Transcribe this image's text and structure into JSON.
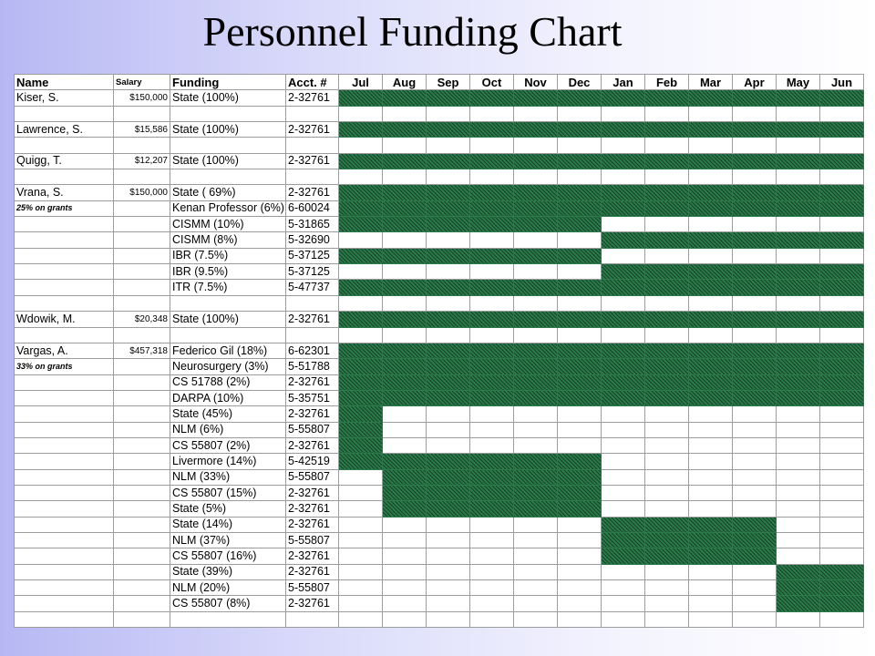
{
  "title": "Personnel Funding Chart",
  "chart_data": {
    "type": "table",
    "columns": [
      "Name",
      "Salary",
      "Funding",
      "Acct. #",
      "Jul",
      "Aug",
      "Sep",
      "Oct",
      "Nov",
      "Dec",
      "Jan",
      "Feb",
      "Mar",
      "Apr",
      "May",
      "Jun"
    ],
    "fill_color": "#2a7a4a",
    "rows": [
      {
        "name": "Kiser, S.",
        "salary": "$150,000",
        "funding": "State (100%)",
        "acct": "2-32761",
        "start": 0,
        "end": 12
      },
      {
        "name": "",
        "salary": "",
        "funding": "",
        "acct": ""
      },
      {
        "name": "Lawrence, S.",
        "salary": "$15,586",
        "funding": "State (100%)",
        "acct": "2-32761",
        "start": 0,
        "end": 12
      },
      {
        "name": "",
        "salary": "",
        "funding": "",
        "acct": ""
      },
      {
        "name": "Quigg, T.",
        "salary": "$12,207",
        "funding": "State (100%)",
        "acct": "2-32761",
        "start": 0,
        "end": 12
      },
      {
        "name": "",
        "salary": "",
        "funding": "",
        "acct": ""
      },
      {
        "name": "Vrana, S.",
        "salary": "$150,000",
        "funding": "State ( 69%)",
        "acct": "2-32761",
        "start": 0,
        "end": 12
      },
      {
        "name": "25% on grants",
        "salary": "",
        "funding": "Kenan Professor (6%)",
        "acct": "6-60024",
        "start": 0,
        "end": 12,
        "note": true
      },
      {
        "name": "",
        "salary": "",
        "funding": "CISMM (10%)",
        "acct": "5-31865",
        "start": 0,
        "end": 6
      },
      {
        "name": "",
        "salary": "",
        "funding": "CISMM (8%)",
        "acct": "5-32690",
        "start": 6,
        "end": 12
      },
      {
        "name": "",
        "salary": "",
        "funding": "IBR (7.5%)",
        "acct": "5-37125",
        "start": 0,
        "end": 6
      },
      {
        "name": "",
        "salary": "",
        "funding": "IBR (9.5%)",
        "acct": "5-37125",
        "start": 6,
        "end": 12
      },
      {
        "name": "",
        "salary": "",
        "funding": "ITR (7.5%)",
        "acct": "5-47737",
        "start": 0,
        "end": 12
      },
      {
        "name": "",
        "salary": "",
        "funding": "",
        "acct": ""
      },
      {
        "name": "Wdowik, M.",
        "salary": "$20,348",
        "funding": "State (100%)",
        "acct": "2-32761",
        "start": 0,
        "end": 12
      },
      {
        "name": "",
        "salary": "",
        "funding": "",
        "acct": ""
      },
      {
        "name": "Vargas, A.",
        "salary": "$457,318",
        "funding": "Federico Gil (18%)",
        "acct": "6-62301",
        "start": 0,
        "end": 12
      },
      {
        "name": "33% on grants",
        "salary": "",
        "funding": "Neurosurgery (3%)",
        "acct": "5-51788",
        "start": 0,
        "end": 12,
        "note": true
      },
      {
        "name": "",
        "salary": "",
        "funding": "CS 51788 (2%)",
        "acct": "2-32761",
        "start": 0,
        "end": 12
      },
      {
        "name": "",
        "salary": "",
        "funding": "DARPA (10%)",
        "acct": "5-35751",
        "start": 0,
        "end": 12
      },
      {
        "name": "",
        "salary": "",
        "funding": "State (45%)",
        "acct": "2-32761",
        "start": 0,
        "end": 1
      },
      {
        "name": "",
        "salary": "",
        "funding": "NLM (6%)",
        "acct": "5-55807",
        "start": 0,
        "end": 1
      },
      {
        "name": "",
        "salary": "",
        "funding": "CS 55807 (2%)",
        "acct": "2-32761",
        "start": 0,
        "end": 1
      },
      {
        "name": "",
        "salary": "",
        "funding": "Livermore (14%)",
        "acct": "5-42519",
        "start": 0,
        "end": 6
      },
      {
        "name": "",
        "salary": "",
        "funding": "NLM (33%)",
        "acct": "5-55807",
        "start": 1,
        "end": 6
      },
      {
        "name": "",
        "salary": "",
        "funding": "CS 55807 (15%)",
        "acct": "2-32761",
        "start": 1,
        "end": 6
      },
      {
        "name": "",
        "salary": "",
        "funding": "State (5%)",
        "acct": "2-32761",
        "start": 1,
        "end": 6
      },
      {
        "name": "",
        "salary": "",
        "funding": "State (14%)",
        "acct": "2-32761",
        "start": 6,
        "end": 10
      },
      {
        "name": "",
        "salary": "",
        "funding": "NLM (37%)",
        "acct": "5-55807",
        "start": 6,
        "end": 10
      },
      {
        "name": "",
        "salary": "",
        "funding": "CS 55807 (16%)",
        "acct": "2-32761",
        "start": 6,
        "end": 10
      },
      {
        "name": "",
        "salary": "",
        "funding": "State (39%)",
        "acct": "2-32761",
        "start": 10,
        "end": 12
      },
      {
        "name": "",
        "salary": "",
        "funding": "NLM (20%)",
        "acct": "5-55807",
        "start": 10,
        "end": 12
      },
      {
        "name": "",
        "salary": "",
        "funding": "CS 55807 (8%)",
        "acct": "2-32761",
        "start": 10,
        "end": 12
      },
      {
        "name": "",
        "salary": "",
        "funding": "",
        "acct": ""
      }
    ]
  }
}
